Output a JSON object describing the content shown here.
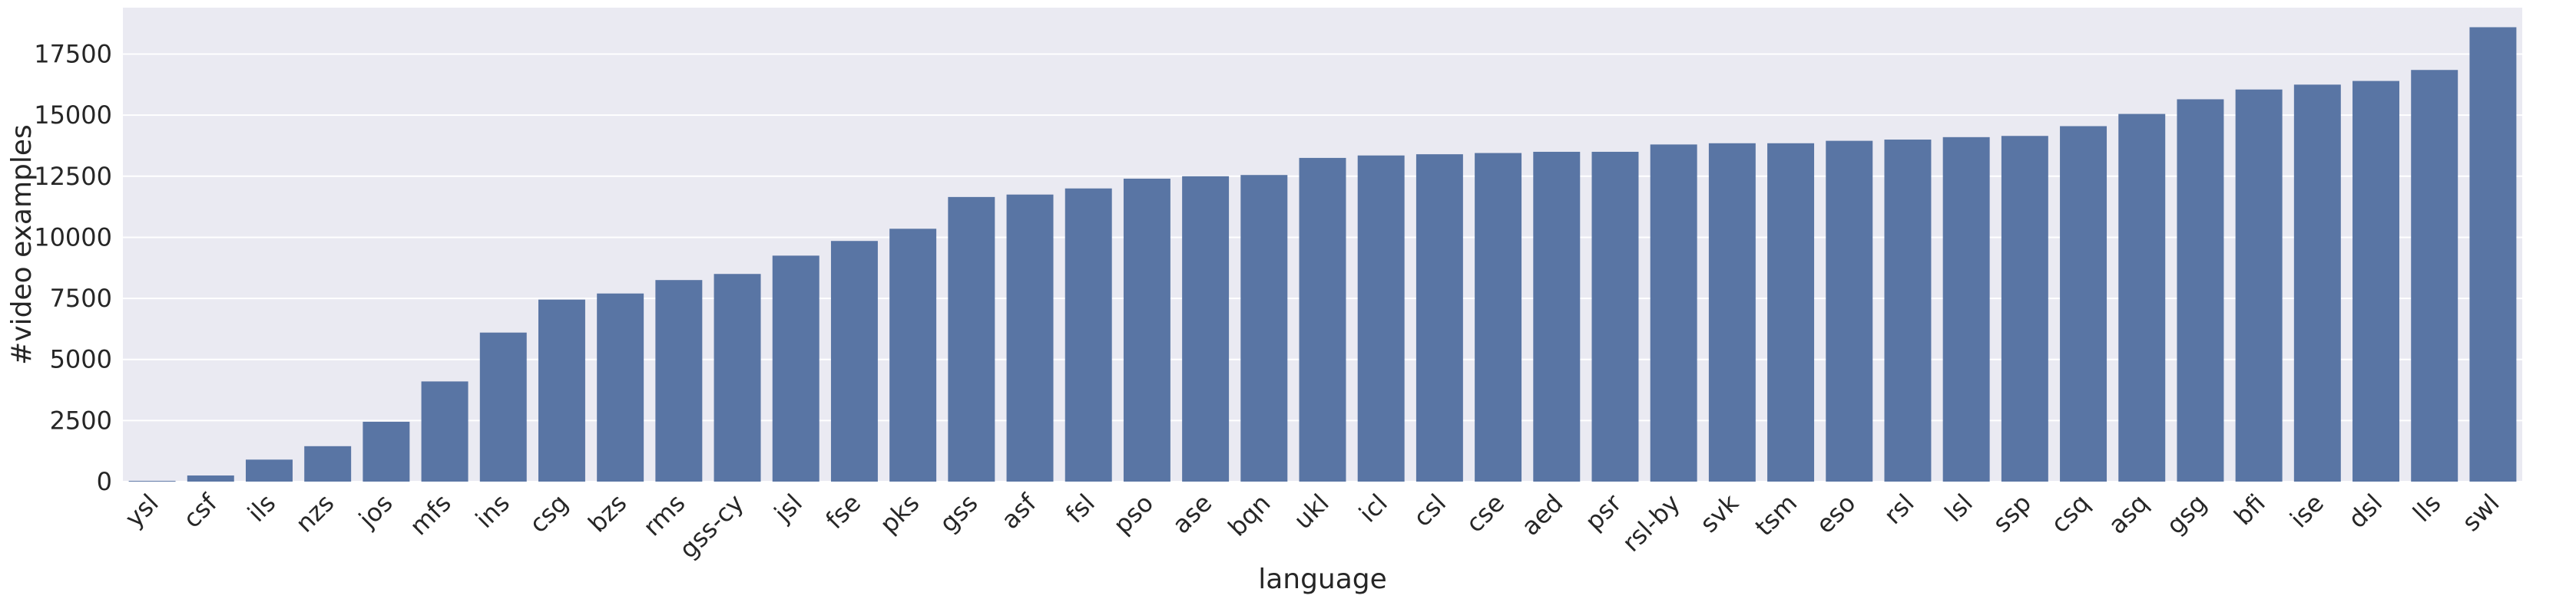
{
  "chart_data": {
    "type": "bar",
    "title": "",
    "xlabel": "language",
    "ylabel": "#video examples",
    "ylim": [
      0,
      19400
    ],
    "yticks": [
      0,
      2500,
      5000,
      7500,
      10000,
      12500,
      15000,
      17500
    ],
    "grid": true,
    "legend": "none",
    "bar_color": "#5975a4",
    "background_color": "#eaeaf2",
    "grid_color": "#ffffff",
    "categories": [
      "ysl",
      "csf",
      "ils",
      "nzs",
      "jos",
      "mfs",
      "ins",
      "csg",
      "bzs",
      "rms",
      "gss-cy",
      "jsl",
      "fse",
      "pks",
      "gss",
      "asf",
      "fsl",
      "pso",
      "ase",
      "bqn",
      "ukl",
      "icl",
      "csl",
      "cse",
      "aed",
      "psr",
      "rsl-by",
      "svk",
      "tsm",
      "eso",
      "rsl",
      "lsl",
      "ssp",
      "csq",
      "asq",
      "gsg",
      "bfi",
      "ise",
      "dsl",
      "lls",
      "swl"
    ],
    "values": [
      30,
      250,
      900,
      1450,
      2450,
      4100,
      6100,
      7450,
      7700,
      8250,
      8500,
      9250,
      9850,
      10350,
      11650,
      11750,
      12000,
      12400,
      12500,
      12550,
      13250,
      13350,
      13400,
      13450,
      13500,
      13500,
      13800,
      13850,
      13850,
      13950,
      14000,
      14100,
      14150,
      14550,
      15050,
      15650,
      16050,
      16250,
      16400,
      16850,
      18600
    ]
  }
}
